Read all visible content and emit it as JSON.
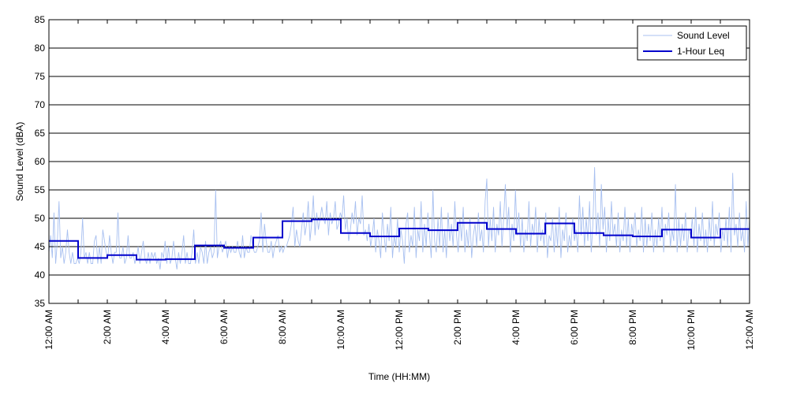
{
  "chart_data": {
    "type": "line",
    "xlabel": "Time (HH:MM)",
    "ylabel": "Sound Level (dBA)",
    "ylim": [
      35,
      85
    ],
    "xlim_hours": [
      0,
      24
    ],
    "yticks": [
      35,
      40,
      45,
      50,
      55,
      60,
      65,
      70,
      75,
      80,
      85
    ],
    "xticks": [
      {
        "hour": 0,
        "label": "12:00 AM"
      },
      {
        "hour": 2,
        "label": "2:00 AM"
      },
      {
        "hour": 4,
        "label": "4:00 AM"
      },
      {
        "hour": 6,
        "label": "6:00 AM"
      },
      {
        "hour": 8,
        "label": "8:00 AM"
      },
      {
        "hour": 10,
        "label": "10:00 AM"
      },
      {
        "hour": 12,
        "label": "12:00 PM"
      },
      {
        "hour": 14,
        "label": "2:00 PM"
      },
      {
        "hour": 16,
        "label": "4:00 PM"
      },
      {
        "hour": 18,
        "label": "6:00 PM"
      },
      {
        "hour": 20,
        "label": "8:00 PM"
      },
      {
        "hour": 22,
        "label": "10:00 PM"
      },
      {
        "hour": 24,
        "label": "12:00 AM"
      }
    ],
    "grid": "horizontal",
    "legend_position": "top-right",
    "series": [
      {
        "name": "Sound Level",
        "style": "thin-line",
        "color": "#a8c0f0",
        "values": [
          44,
          47,
          43,
          51,
          42,
          46,
          53,
          43,
          45,
          42,
          44,
          48,
          44,
          42,
          44,
          42,
          42,
          43,
          42,
          44,
          50,
          43,
          44,
          42,
          44,
          42,
          42,
          46,
          47,
          42,
          45,
          42,
          48,
          46,
          44,
          43,
          47,
          44,
          42,
          44,
          44,
          51,
          43,
          43,
          45,
          42,
          43,
          47,
          43,
          43,
          44,
          42,
          43,
          45,
          42,
          44,
          46,
          43,
          42,
          44,
          42,
          44,
          43,
          44,
          42,
          43,
          41,
          44,
          43,
          46,
          42,
          45,
          42,
          43,
          46,
          43,
          41,
          44,
          42,
          44,
          47,
          42,
          44,
          42,
          42,
          44,
          48,
          42,
          44,
          42,
          45,
          44,
          42,
          46,
          42,
          44,
          45,
          43,
          44,
          55,
          43,
          45,
          46,
          44,
          45,
          46,
          43,
          45,
          44,
          45,
          44,
          44,
          46,
          44,
          43,
          47,
          43,
          45,
          44,
          44,
          47,
          45,
          44,
          44,
          45,
          46,
          51,
          44,
          49,
          46,
          44,
          44,
          46,
          43,
          45,
          46,
          47,
          44,
          45,
          44,
          45,
          45,
          46,
          47,
          49,
          52,
          45,
          48,
          46,
          45,
          48,
          51,
          47,
          49,
          53,
          46,
          49,
          54,
          47,
          51,
          48,
          50,
          52,
          50,
          49,
          53,
          47,
          51,
          49,
          50,
          53,
          48,
          49,
          51,
          50,
          54,
          48,
          50,
          46,
          48,
          51,
          49,
          53,
          47,
          50,
          49,
          54,
          47,
          48,
          46,
          49,
          45,
          47,
          50,
          44,
          48,
          46,
          43,
          51,
          47,
          44,
          49,
          46,
          52,
          43,
          47,
          45,
          50,
          44,
          48,
          46,
          42,
          49,
          51,
          44,
          47,
          45,
          52,
          43,
          48,
          46,
          53,
          44,
          49,
          45,
          51,
          47,
          43,
          55,
          46,
          44,
          50,
          45,
          52,
          44,
          48,
          43,
          51,
          46,
          49,
          45,
          53,
          47,
          44,
          50,
          46,
          52,
          44,
          48,
          45,
          50,
          43,
          47,
          49,
          45,
          51,
          46,
          48,
          44,
          53,
          57,
          45,
          50,
          46,
          52,
          44,
          49,
          47,
          53,
          45,
          50,
          56,
          48,
          52,
          44,
          49,
          46,
          55,
          47,
          51,
          45,
          50,
          44,
          48,
          46,
          53,
          45,
          49,
          47,
          52,
          44,
          50,
          46,
          48,
          45,
          51,
          43,
          47,
          46,
          50,
          44,
          49,
          45,
          52,
          43,
          48,
          46,
          51,
          44,
          47,
          45,
          50,
          46,
          48,
          44,
          54,
          47,
          52,
          45,
          50,
          46,
          53,
          44,
          49,
          59,
          47,
          51,
          45,
          56,
          48,
          52,
          44,
          50,
          46,
          53,
          47,
          49,
          45,
          51,
          44,
          48,
          46,
          52,
          45,
          50,
          44,
          49,
          47,
          51,
          45,
          48,
          46,
          52,
          44,
          50,
          45,
          49,
          46,
          51,
          44,
          48,
          45,
          50,
          46,
          52,
          44,
          49,
          47,
          51,
          45,
          48,
          46,
          56,
          44,
          50,
          45,
          49,
          46,
          51,
          44,
          48,
          47,
          50,
          45,
          52,
          44,
          49,
          46,
          51,
          45,
          48,
          44,
          50,
          46,
          53,
          45,
          49,
          47,
          51,
          44,
          48,
          46,
          50,
          45,
          52,
          44,
          58,
          47,
          49,
          45,
          51,
          46,
          48,
          44,
          53,
          45,
          50
        ]
      },
      {
        "name": "1-Hour Leq",
        "style": "step",
        "color": "#0000cc",
        "values": [
          46.0,
          43.0,
          43.5,
          42.7,
          42.8,
          45.2,
          44.8,
          46.6,
          49.5,
          49.8,
          47.4,
          46.8,
          48.2,
          47.9,
          49.2,
          48.1,
          47.3,
          49.1,
          47.4,
          47.0,
          46.8,
          48.0,
          46.6,
          48.1
        ]
      }
    ]
  }
}
